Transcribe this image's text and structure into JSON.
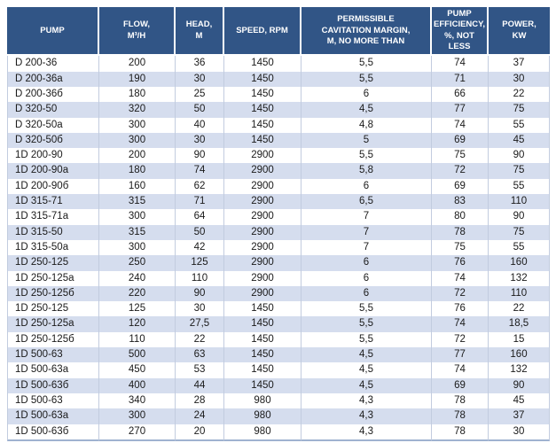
{
  "colors": {
    "header_background": "#315586",
    "header_text": "#FFFFFF",
    "row_stripe": "#D5DDEE",
    "row_plain": "#FFFFFF",
    "grid_line": "#C2CCDF",
    "table_bottom_line": "#9FB2D0",
    "body_text": "#1A1A1A"
  },
  "chart_data": {
    "type": "table",
    "columns": [
      "PUMP",
      "FLOW,\nM³/H",
      "HEAD,\nM",
      "SPEED, RPM",
      "PERMISSIBLE\nCAVITATION MARGIN,\nM, NO MORE THAN",
      "PUMP\nEFFICIENCY,\n%, NOT LESS",
      "POWER,\nKW"
    ],
    "rows": [
      [
        "D 200-36",
        "200",
        "36",
        "1450",
        "5,5",
        "74",
        "37"
      ],
      [
        "D 200-36a",
        "190",
        "30",
        "1450",
        "5,5",
        "71",
        "30"
      ],
      [
        "D 200-36б",
        "180",
        "25",
        "1450",
        "6",
        "66",
        "22"
      ],
      [
        "D 320-50",
        "320",
        "50",
        "1450",
        "4,5",
        "77",
        "75"
      ],
      [
        "D 320-50a",
        "300",
        "40",
        "1450",
        "4,8",
        "74",
        "55"
      ],
      [
        "D 320-50б",
        "300",
        "30",
        "1450",
        "5",
        "69",
        "45"
      ],
      [
        "1D 200-90",
        "200",
        "90",
        "2900",
        "5,5",
        "75",
        "90"
      ],
      [
        "1D 200-90a",
        "180",
        "74",
        "2900",
        "5,8",
        "72",
        "75"
      ],
      [
        "1D 200-90б",
        "160",
        "62",
        "2900",
        "6",
        "69",
        "55"
      ],
      [
        "1D 315-71",
        "315",
        "71",
        "2900",
        "6,5",
        "83",
        "110"
      ],
      [
        "1D 315-71a",
        "300",
        "64",
        "2900",
        "7",
        "80",
        "90"
      ],
      [
        "1D 315-50",
        "315",
        "50",
        "2900",
        "7",
        "78",
        "75"
      ],
      [
        "1D 315-50a",
        "300",
        "42",
        "2900",
        "7",
        "75",
        "55"
      ],
      [
        "1D 250-125",
        "250",
        "125",
        "2900",
        "6",
        "76",
        "160"
      ],
      [
        "1D 250-125a",
        "240",
        "110",
        "2900",
        "6",
        "74",
        "132"
      ],
      [
        "1D 250-125б",
        "220",
        "90",
        "2900",
        "6",
        "72",
        "110"
      ],
      [
        "1D 250-125",
        "125",
        "30",
        "1450",
        "5,5",
        "76",
        "22"
      ],
      [
        "1D 250-125a",
        "120",
        "27,5",
        "1450",
        "5,5",
        "74",
        "18,5"
      ],
      [
        "1D 250-125б",
        "110",
        "22",
        "1450",
        "5,5",
        "72",
        "15"
      ],
      [
        "1D 500-63",
        "500",
        "63",
        "1450",
        "4,5",
        "77",
        "160"
      ],
      [
        "1D 500-63a",
        "450",
        "53",
        "1450",
        "4,5",
        "74",
        "132"
      ],
      [
        "1D 500-63б",
        "400",
        "44",
        "1450",
        "4,5",
        "69",
        "90"
      ],
      [
        "1D 500-63",
        "340",
        "28",
        "980",
        "4,3",
        "78",
        "45"
      ],
      [
        "1D 500-63a",
        "300",
        "24",
        "980",
        "4,3",
        "78",
        "37"
      ],
      [
        "1D 500-63б",
        "270",
        "20",
        "980",
        "4,3",
        "78",
        "30"
      ]
    ]
  }
}
